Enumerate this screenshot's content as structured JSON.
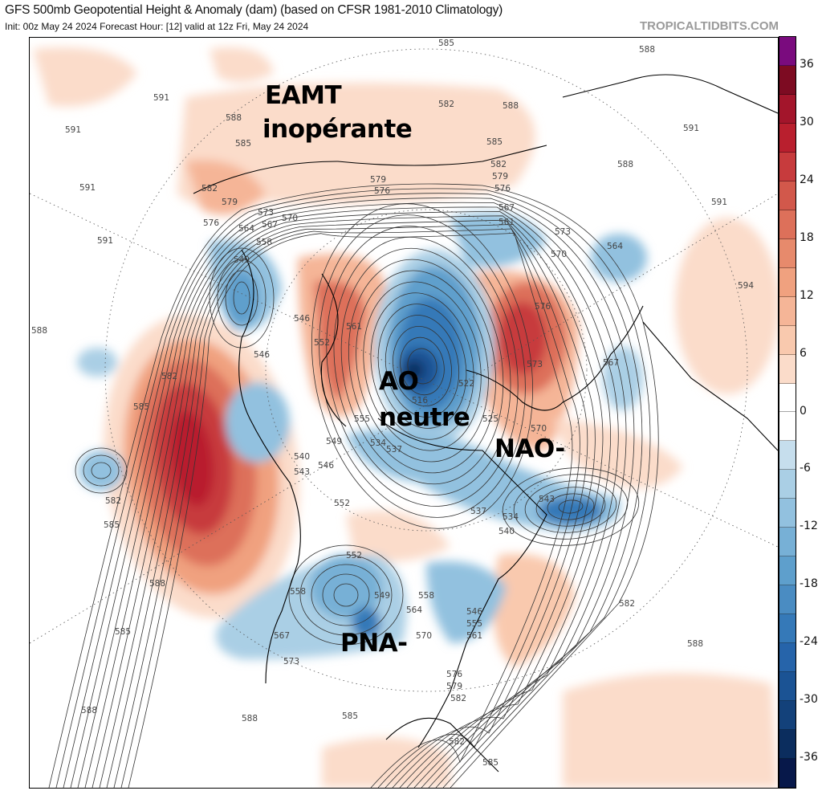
{
  "header": {
    "title": "GFS 500mb Geopotential Height & Anomaly (dam) (based on CFSR 1981-2010 Climatology)",
    "subtitle": "Init: 00z May 24 2024   Forecast Hour: [12]   valid at 12z Fri, May 24 2024",
    "brand": "TROPICALTIDBITS.COM"
  },
  "annotations": {
    "eamt_line1": "EAMT",
    "eamt_line2": "inopérante",
    "ao_line1": "AO",
    "ao_line2": "neutre",
    "nao": "NAO-",
    "pna": "PNA-"
  },
  "colorbar": {
    "ticks": [
      "36",
      "30",
      "24",
      "18",
      "12",
      "6",
      "0",
      "-6",
      "-12",
      "-18",
      "-24",
      "-30",
      "-36"
    ],
    "colors": [
      "#7a0b7e",
      "#7d0b22",
      "#a3152b",
      "#b91f2e",
      "#c73b3d",
      "#d2584b",
      "#dd705a",
      "#e78a6c",
      "#f0a17f",
      "#f5b597",
      "#f9c9ae",
      "#fbdcca",
      "#ffffff",
      "#ffffff",
      "#c6deed",
      "#aacfe5",
      "#92c1df",
      "#77b0d6",
      "#5e9fcc",
      "#4a8cc2",
      "#3579b8",
      "#2664aa",
      "#1b5394",
      "#13417a",
      "#0b2d5e",
      "#07184a"
    ]
  },
  "contour_labels": [
    "591",
    "591",
    "591",
    "591",
    "591",
    "591",
    "588",
    "588",
    "588",
    "588",
    "588",
    "588",
    "588",
    "588",
    "588",
    "585",
    "585",
    "585",
    "585",
    "585",
    "585",
    "582",
    "582",
    "582",
    "582",
    "582",
    "582",
    "582",
    "579",
    "579",
    "579",
    "579",
    "576",
    "576",
    "576",
    "576",
    "576",
    "573",
    "573",
    "573",
    "570",
    "570",
    "570",
    "570",
    "567",
    "567",
    "567",
    "567",
    "564",
    "564",
    "564",
    "561",
    "561",
    "561",
    "558",
    "558",
    "558",
    "555",
    "555",
    "552",
    "552",
    "552",
    "549",
    "549",
    "549",
    "546",
    "546",
    "546",
    "546",
    "543",
    "543",
    "540",
    "540",
    "537",
    "537",
    "534",
    "534",
    "525",
    "522",
    "516",
    "594",
    "573",
    "585",
    "582",
    "585"
  ]
}
